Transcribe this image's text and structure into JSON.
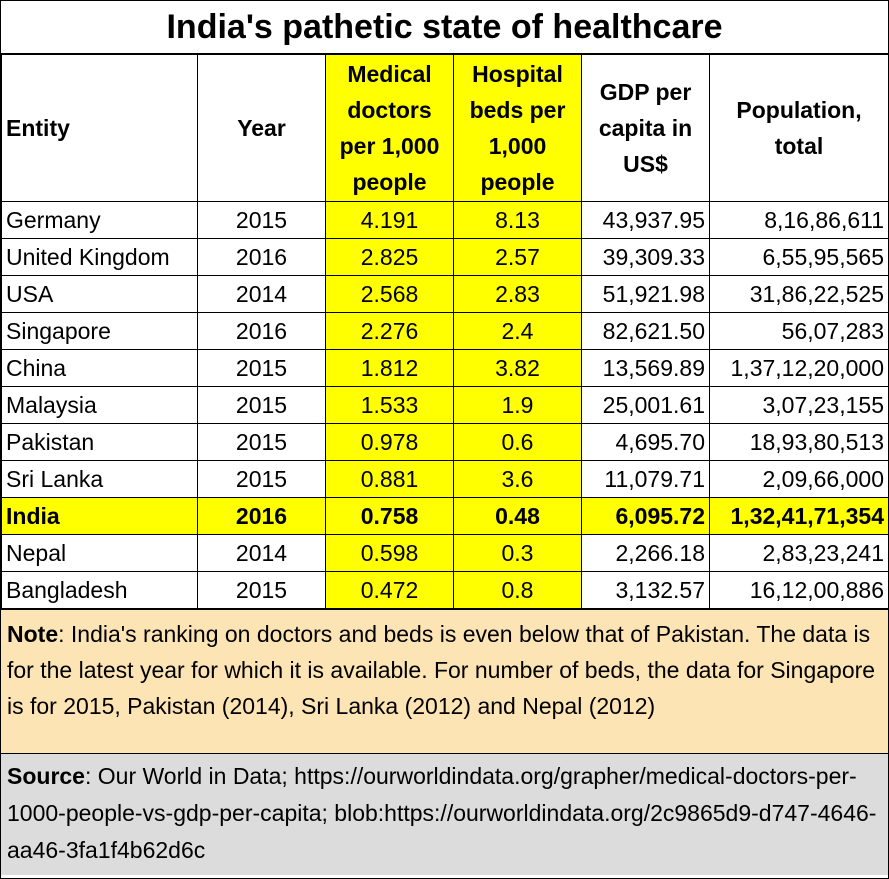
{
  "title": "India's pathetic state of healthcare",
  "headers": {
    "entity": "Entity",
    "year": "Year",
    "doctors": "Medical doctors per 1,000 people",
    "beds": "Hospital beds per 1,000 people",
    "gdp": "GDP per capita in US$",
    "population": "Population, total"
  },
  "rows": [
    {
      "entity": "Germany",
      "year": "2015",
      "doctors": "4.191",
      "beds": "8.13",
      "gdp": "43,937.95",
      "population": "8,16,86,611"
    },
    {
      "entity": "United Kingdom",
      "year": "2016",
      "doctors": "2.825",
      "beds": "2.57",
      "gdp": "39,309.33",
      "population": "6,55,95,565"
    },
    {
      "entity": "USA",
      "year": "2014",
      "doctors": "2.568",
      "beds": "2.83",
      "gdp": "51,921.98",
      "population": "31,86,22,525"
    },
    {
      "entity": "Singapore",
      "year": "2016",
      "doctors": "2.276",
      "beds": "2.4",
      "gdp": "82,621.50",
      "population": "56,07,283"
    },
    {
      "entity": "China",
      "year": "2015",
      "doctors": "1.812",
      "beds": "3.82",
      "gdp": "13,569.89",
      "population": "1,37,12,20,000"
    },
    {
      "entity": "Malaysia",
      "year": "2015",
      "doctors": "1.533",
      "beds": "1.9",
      "gdp": "25,001.61",
      "population": "3,07,23,155"
    },
    {
      "entity": "Pakistan",
      "year": "2015",
      "doctors": "0.978",
      "beds": "0.6",
      "gdp": "4,695.70",
      "population": "18,93,80,513"
    },
    {
      "entity": "Sri Lanka",
      "year": "2015",
      "doctors": "0.881",
      "beds": "3.6",
      "gdp": "11,079.71",
      "population": "2,09,66,000"
    },
    {
      "entity": "India",
      "year": "2016",
      "doctors": "0.758",
      "beds": "0.48",
      "gdp": "6,095.72",
      "population": "1,32,41,71,354"
    },
    {
      "entity": "Nepal",
      "year": "2014",
      "doctors": "0.598",
      "beds": "0.3",
      "gdp": "2,266.18",
      "population": "2,83,23,241"
    },
    {
      "entity": "Bangladesh",
      "year": "2015",
      "doctors": "0.472",
      "beds": "0.8",
      "gdp": "3,132.57",
      "population": "16,12,00,886"
    }
  ],
  "highlight_color": "#ffff00",
  "note": {
    "label": "Note",
    "text": ":  India's ranking on doctors and beds is even below that of Pakistan. The data is for the latest year for which it is available. For number of beds, the data for Singapore is for 2015, Pakistan (2014), Sri Lanka (2012) and Nepal (2012)"
  },
  "source": {
    "label": "Source",
    "text": ": Our World in Data; https://ourworldindata.org/grapher/medical-doctors-per-1000-people-vs-gdp-per-capita; blob:https://ourworldindata.org/2c9865d9-d747-4646-aa46-3fa1f4b62d6c"
  }
}
